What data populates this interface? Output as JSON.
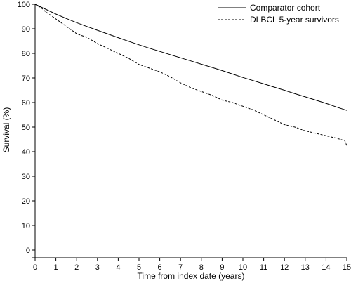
{
  "chart_data": {
    "type": "line",
    "xlabel": "Time from index date (years)",
    "ylabel": "Survival (%)",
    "xlim": [
      0,
      15
    ],
    "ylim": [
      0,
      100
    ],
    "x_ticks": [
      0,
      1,
      2,
      3,
      4,
      5,
      6,
      7,
      8,
      9,
      10,
      11,
      12,
      13,
      14,
      15
    ],
    "y_ticks": [
      0,
      10,
      20,
      30,
      40,
      50,
      60,
      70,
      80,
      90,
      100
    ],
    "grid": false,
    "legend_position": "top-right",
    "series": [
      {
        "name": "Comparator cohort",
        "style": "solid",
        "x": [
          0,
          0.5,
          1,
          1.5,
          2,
          2.5,
          3,
          3.5,
          4,
          4.5,
          5,
          5.5,
          6,
          6.5,
          7,
          7.5,
          8,
          8.5,
          9,
          9.5,
          10,
          10.5,
          11,
          11.5,
          12,
          12.5,
          13,
          13.5,
          14,
          14.5,
          15
        ],
        "y": [
          100,
          98.0,
          96.0,
          94.2,
          92.5,
          90.9,
          89.4,
          87.9,
          86.4,
          84.9,
          83.5,
          82.1,
          80.8,
          79.5,
          78.2,
          76.9,
          75.6,
          74.3,
          73.0,
          71.6,
          70.2,
          68.9,
          67.6,
          66.3,
          65.0,
          63.6,
          62.3,
          61.0,
          59.7,
          58.2,
          56.8
        ]
      },
      {
        "name": "DLBCL 5-year survivors",
        "style": "dashed",
        "x": [
          0,
          0.3,
          0.5,
          1,
          1.5,
          2,
          2.5,
          3,
          3.5,
          4,
          4.5,
          5,
          5.5,
          6,
          6.5,
          7,
          7.5,
          8,
          8.5,
          9,
          9.5,
          10,
          10.5,
          11,
          11.5,
          12,
          12.5,
          13,
          13.5,
          14,
          14.5,
          14.9,
          15
        ],
        "y": [
          100,
          98.5,
          97.0,
          94.0,
          91.0,
          88.0,
          86.5,
          84.0,
          82.0,
          80.0,
          78.0,
          75.5,
          74.0,
          72.5,
          70.5,
          68.0,
          66.0,
          64.5,
          63.0,
          61.0,
          60.0,
          58.5,
          57.0,
          55.0,
          53.0,
          51.0,
          50.0,
          48.5,
          47.5,
          46.5,
          45.5,
          44.5,
          42.5
        ]
      }
    ]
  }
}
